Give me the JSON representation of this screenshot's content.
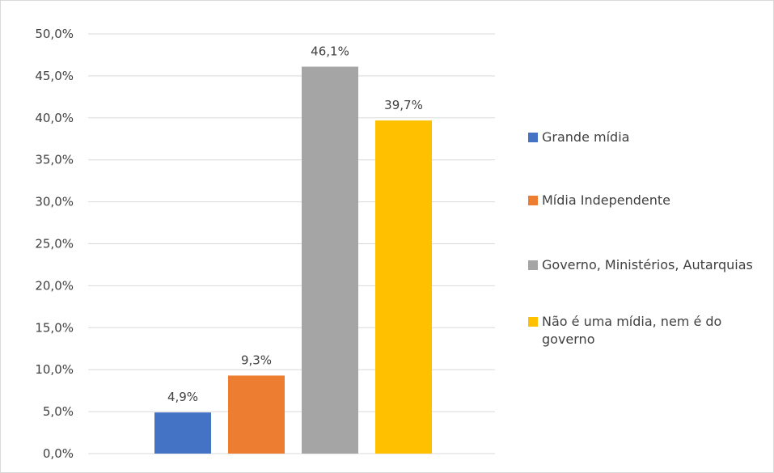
{
  "chart_data": {
    "type": "bar",
    "y_axis": {
      "min": 0,
      "max": 50,
      "step": 5,
      "tick_labels": [
        "0,0%",
        "5,0%",
        "10,0%",
        "15,0%",
        "20,0%",
        "25,0%",
        "30,0%",
        "35,0%",
        "40,0%",
        "45,0%",
        "50,0%"
      ]
    },
    "grid": true,
    "legend_position": "right",
    "series": [
      {
        "name": "Grande mídia",
        "value": 4.9,
        "label": "4,9%",
        "color": "#4472c4"
      },
      {
        "name": "Mídia Independente",
        "value": 9.3,
        "label": "9,3%",
        "color": "#ed7d31"
      },
      {
        "name": "Governo, Ministérios, Autarquias",
        "value": 46.1,
        "label": "46,1%",
        "color": "#a5a5a5"
      },
      {
        "name": "Não é uma mídia, nem é do governo",
        "value": 39.7,
        "label": "39,7%",
        "color": "#ffc000"
      }
    ]
  }
}
